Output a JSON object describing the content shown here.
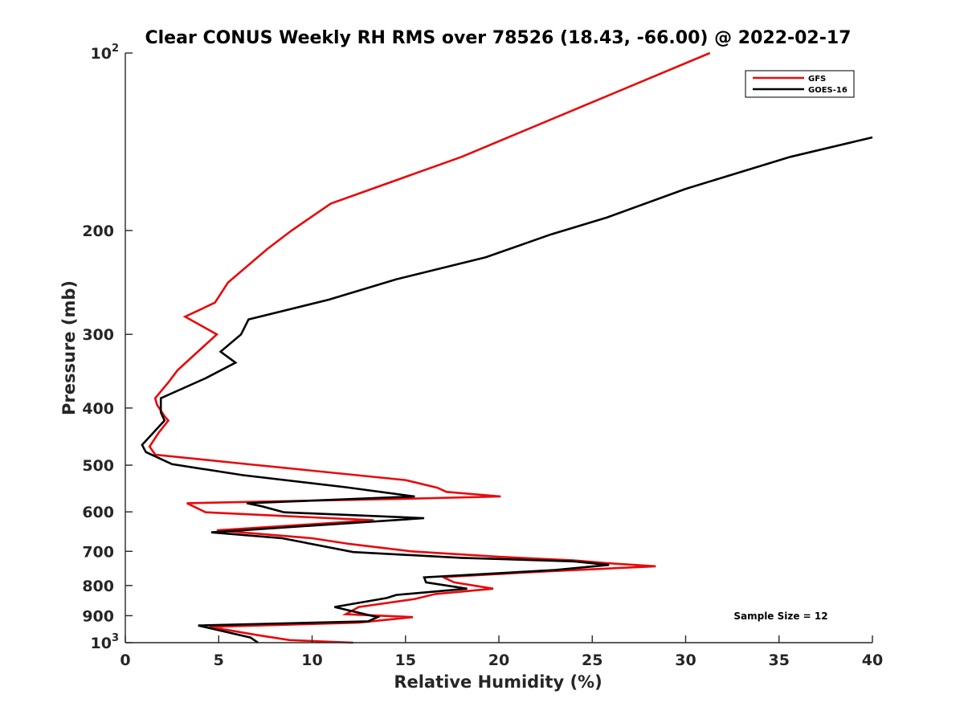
{
  "chart_data": {
    "type": "line",
    "title": "Clear CONUS Weekly RH RMS over 78526 (18.43, -66.00) @ 2022-02-17",
    "xlabel": "Relative Humidity (%)",
    "ylabel": "Pressure (mb)",
    "xlim": [
      0,
      40
    ],
    "ylim": [
      100,
      1000
    ],
    "yscale": "log",
    "y_reversed": true,
    "x_ticks": [
      "0",
      "5",
      "10",
      "15",
      "20",
      "25",
      "30",
      "35",
      "40"
    ],
    "y_ticks": [
      {
        "value": 100,
        "base": "10",
        "exp": "2"
      },
      {
        "value": 200,
        "label": "200"
      },
      {
        "value": 300,
        "label": "300"
      },
      {
        "value": 400,
        "label": "400"
      },
      {
        "value": 500,
        "label": "500"
      },
      {
        "value": 600,
        "label": "600"
      },
      {
        "value": 700,
        "label": "700"
      },
      {
        "value": 800,
        "label": "800"
      },
      {
        "value": 900,
        "label": "900"
      },
      {
        "value": 1000,
        "base": "10",
        "exp": "3"
      }
    ],
    "legend_position": "top-right",
    "annotation": "Sample Size = 12",
    "series": [
      {
        "name": "GFS",
        "color": "#e8090b",
        "points": [
          [
            31.3,
            100
          ],
          [
            18.0,
            150
          ],
          [
            11.0,
            180
          ],
          [
            8.9,
            200
          ],
          [
            7.6,
            215
          ],
          [
            5.5,
            245
          ],
          [
            4.8,
            265
          ],
          [
            3.2,
            280
          ],
          [
            4.9,
            300
          ],
          [
            2.8,
            345
          ],
          [
            2.3,
            362
          ],
          [
            1.6,
            385
          ],
          [
            1.7,
            395
          ],
          [
            2.1,
            413
          ],
          [
            2.3,
            420
          ],
          [
            1.8,
            440
          ],
          [
            1.3,
            465
          ],
          [
            1.6,
            480
          ],
          [
            6.0,
            496
          ],
          [
            15.0,
            530
          ],
          [
            16.7,
            546
          ],
          [
            17.2,
            555
          ],
          [
            20.1,
            565
          ],
          [
            15.1,
            570
          ],
          [
            3.3,
            580
          ],
          [
            4.3,
            601
          ],
          [
            13.3,
            620
          ],
          [
            4.9,
            645
          ],
          [
            10.0,
            665
          ],
          [
            12.0,
            680
          ],
          [
            15.3,
            700
          ],
          [
            20.0,
            715
          ],
          [
            24.0,
            725
          ],
          [
            25.8,
            733
          ],
          [
            28.4,
            742
          ],
          [
            22.5,
            757
          ],
          [
            17.0,
            774
          ],
          [
            17.6,
            790
          ],
          [
            19.7,
            810
          ],
          [
            16.6,
            827
          ],
          [
            15.5,
            843
          ],
          [
            12.5,
            870
          ],
          [
            11.8,
            895
          ],
          [
            15.4,
            905
          ],
          [
            12.5,
            925
          ],
          [
            4.5,
            940
          ],
          [
            7.0,
            970
          ],
          [
            8.8,
            990
          ],
          [
            12.2,
            1000
          ]
        ]
      },
      {
        "name": "GOES-16",
        "color": "#000000",
        "points": [
          [
            40.0,
            139
          ],
          [
            35.6,
            150
          ],
          [
            30.0,
            170
          ],
          [
            25.8,
            190
          ],
          [
            22.8,
            203
          ],
          [
            19.3,
            222
          ],
          [
            14.5,
            242
          ],
          [
            10.9,
            262
          ],
          [
            6.6,
            283
          ],
          [
            6.2,
            300
          ],
          [
            5.1,
            321
          ],
          [
            5.9,
            335
          ],
          [
            4.3,
            356
          ],
          [
            1.9,
            385
          ],
          [
            1.9,
            407
          ],
          [
            2.1,
            420
          ],
          [
            0.9,
            462
          ],
          [
            1.1,
            475
          ],
          [
            2.5,
            498
          ],
          [
            6.3,
            520
          ],
          [
            11.8,
            545
          ],
          [
            15.5,
            565
          ],
          [
            6.5,
            580
          ],
          [
            7.3,
            587
          ],
          [
            8.5,
            601
          ],
          [
            16.0,
            615
          ],
          [
            4.6,
            650
          ],
          [
            8.4,
            665
          ],
          [
            12.2,
            702
          ],
          [
            18.0,
            718
          ],
          [
            24.0,
            728
          ],
          [
            25.9,
            738
          ],
          [
            23.0,
            753
          ],
          [
            16.0,
            775
          ],
          [
            16.1,
            790
          ],
          [
            18.3,
            810
          ],
          [
            14.5,
            830
          ],
          [
            14.0,
            840
          ],
          [
            11.2,
            870
          ],
          [
            13.5,
            905
          ],
          [
            13.0,
            920
          ],
          [
            3.9,
            935
          ],
          [
            6.7,
            980
          ],
          [
            7.1,
            1000
          ]
        ]
      }
    ]
  }
}
